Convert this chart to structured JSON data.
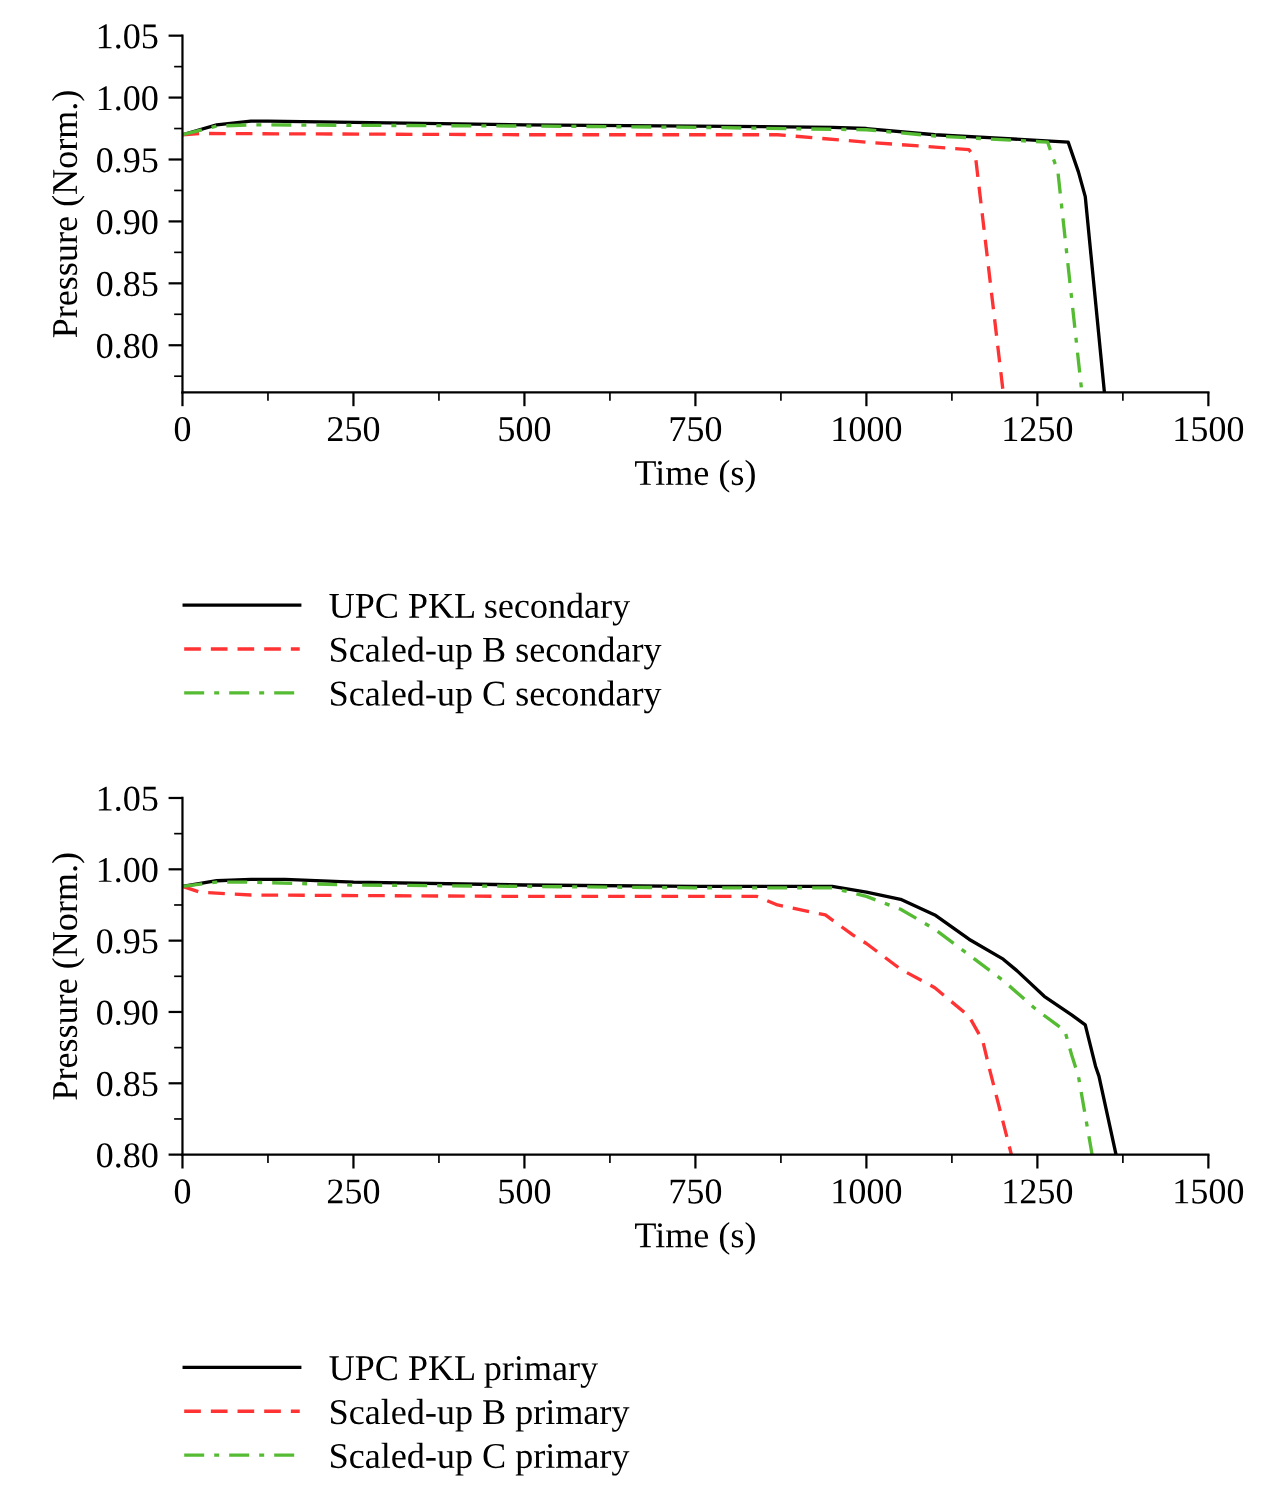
{
  "chart_data": [
    {
      "type": "line",
      "xlabel": "Time (s)",
      "ylabel": "Pressure (Norm.)",
      "xlim": [
        0,
        1500
      ],
      "ylim": [
        0.762,
        1.05
      ],
      "xticks": [
        0,
        {
          "value": 125,
          "label": null
        },
        250,
        {
          "value": 375,
          "label": null
        },
        500,
        {
          "value": 625,
          "label": null
        },
        750,
        {
          "value": 875,
          "label": null
        },
        1000,
        {
          "value": 1125,
          "label": null
        },
        1250,
        {
          "value": 1375,
          "label": null
        },
        1500
      ],
      "yticks": [
        {
          "value": 0.775,
          "label": null
        },
        {
          "value": 0.8,
          "label": "0.80"
        },
        {
          "value": 0.825,
          "label": null
        },
        0.85,
        {
          "value": 0.875,
          "label": null
        },
        {
          "value": 0.9,
          "label": "0.90"
        },
        {
          "value": 0.925,
          "label": null
        },
        0.95,
        {
          "value": 0.975,
          "label": null
        },
        {
          "value": 1.0,
          "label": "1.00"
        },
        {
          "value": 1.025,
          "label": null
        },
        1.05
      ],
      "legend": "bottom",
      "grid": false,
      "series": [
        {
          "name": "UPC PKL secondary",
          "color": "#000000",
          "line_style": "solid",
          "x": [
            0,
            50,
            100,
            125,
            250,
            500,
            750,
            950,
            1000,
            1100,
            1200,
            1295,
            1310,
            1320,
            1348
          ],
          "values": [
            0.97,
            0.978,
            0.981,
            0.981,
            0.98,
            0.978,
            0.977,
            0.976,
            0.975,
            0.97,
            0.967,
            0.964,
            0.94,
            0.92,
            0.762
          ]
        },
        {
          "name": "Scaled-up B secondary",
          "color": "#ff3333",
          "line_style": "dashed",
          "x": [
            0,
            25,
            500,
            870,
            1000,
            1150,
            1160,
            1200
          ],
          "values": [
            0.97,
            0.971,
            0.97,
            0.97,
            0.964,
            0.958,
            0.95,
            0.762
          ]
        },
        {
          "name": "Scaled-up C secondary",
          "color": "#55bb33",
          "line_style": "dashdot",
          "x": [
            0,
            50,
            100,
            500,
            750,
            1000,
            1100,
            1265,
            1280,
            1315
          ],
          "values": [
            0.97,
            0.977,
            0.978,
            0.977,
            0.976,
            0.974,
            0.969,
            0.964,
            0.94,
            0.762
          ]
        }
      ]
    },
    {
      "type": "line",
      "xlabel": "Time (s)",
      "ylabel": "Pressure (Norm.)",
      "xlim": [
        0,
        1500
      ],
      "ylim": [
        0.8,
        1.05
      ],
      "xticks": [
        0,
        {
          "value": 125,
          "label": null
        },
        250,
        {
          "value": 375,
          "label": null
        },
        500,
        {
          "value": 625,
          "label": null
        },
        750,
        {
          "value": 875,
          "label": null
        },
        1000,
        {
          "value": 1125,
          "label": null
        },
        1250,
        {
          "value": 1375,
          "label": null
        },
        1500
      ],
      "yticks": [
        {
          "value": 0.8,
          "label": "0.80"
        },
        {
          "value": 0.825,
          "label": null
        },
        0.85,
        {
          "value": 0.875,
          "label": null
        },
        {
          "value": 0.9,
          "label": "0.90"
        },
        {
          "value": 0.925,
          "label": null
        },
        0.95,
        {
          "value": 0.975,
          "label": null
        },
        {
          "value": 1.0,
          "label": "1.00"
        },
        {
          "value": 1.025,
          "label": null
        },
        1.05
      ],
      "legend": "bottom",
      "grid": false,
      "series": [
        {
          "name": "UPC PKL primary",
          "color": "#000000",
          "line_style": "solid",
          "x": [
            0,
            50,
            100,
            150,
            250,
            500,
            750,
            950,
            1000,
            1050,
            1100,
            1150,
            1200,
            1220,
            1260,
            1300,
            1320,
            1335,
            1340,
            1365
          ],
          "values": [
            0.988,
            0.992,
            0.993,
            0.993,
            0.991,
            0.989,
            0.988,
            0.988,
            0.984,
            0.979,
            0.968,
            0.951,
            0.937,
            0.929,
            0.911,
            0.898,
            0.891,
            0.862,
            0.855,
            0.8
          ]
        },
        {
          "name": "Scaled-up B primary",
          "color": "#ff3333",
          "line_style": "dashed",
          "x": [
            0,
            25,
            100,
            500,
            840,
            870,
            940,
            980,
            1000,
            1050,
            1100,
            1150,
            1170,
            1180,
            1212
          ],
          "values": [
            0.988,
            0.984,
            0.982,
            0.981,
            0.981,
            0.975,
            0.968,
            0.954,
            0.948,
            0.93,
            0.917,
            0.897,
            0.88,
            0.86,
            0.8
          ]
        },
        {
          "name": "Scaled-up C primary",
          "color": "#55bb33",
          "line_style": "dashdot",
          "x": [
            0,
            50,
            100,
            250,
            500,
            750,
            950,
            1000,
            1050,
            1100,
            1150,
            1200,
            1250,
            1290,
            1300,
            1310,
            1330
          ],
          "values": [
            0.988,
            0.991,
            0.991,
            0.989,
            0.988,
            0.987,
            0.987,
            0.981,
            0.972,
            0.958,
            0.94,
            0.922,
            0.901,
            0.887,
            0.87,
            0.855,
            0.8
          ]
        }
      ]
    }
  ]
}
